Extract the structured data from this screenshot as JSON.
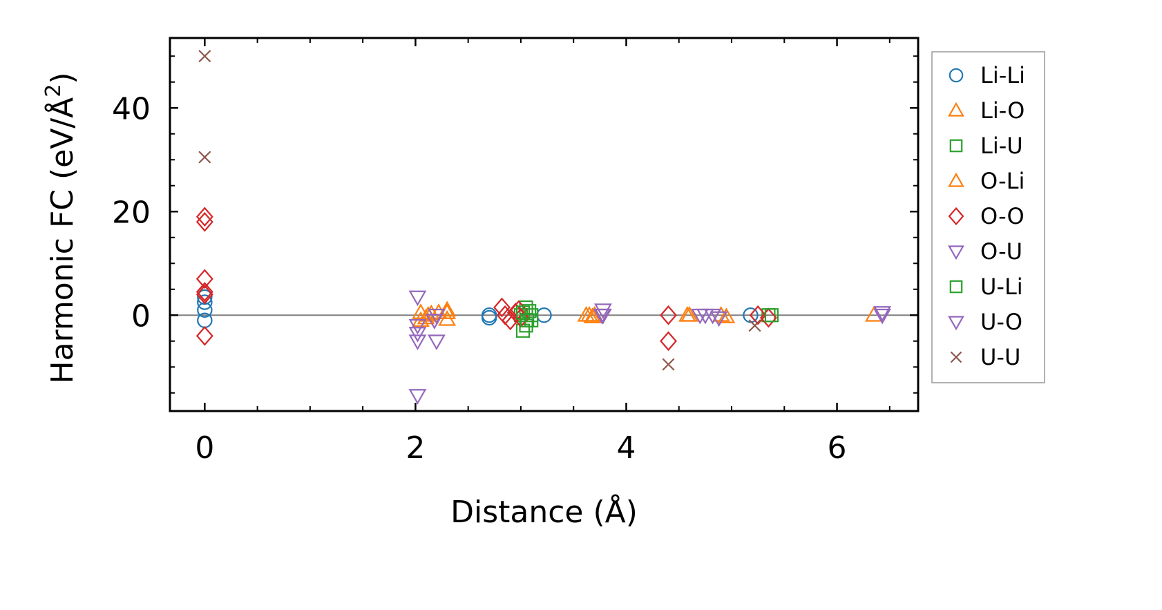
{
  "chart_data": {
    "type": "scatter",
    "xlabel": "Distance (Å)",
    "ylabel_main": "Harmonic FC (eV/Å",
    "ylabel_sup": "2",
    "ylabel_end": ")",
    "xlim": [
      -0.33,
      6.77
    ],
    "ylim": [
      -18.5,
      53.5
    ],
    "xticks": [
      0,
      2,
      4,
      6
    ],
    "xtick_labels": [
      "0",
      "2",
      "4",
      "6"
    ],
    "yticks": [
      0,
      20,
      40
    ],
    "ytick_labels": [
      "0",
      "20",
      "40"
    ],
    "zero_line": 0,
    "legend_position": "right",
    "series": [
      {
        "name": "Li-Li",
        "marker": "circle",
        "color": "#1f77b4",
        "points": [
          [
            0,
            3.5
          ],
          [
            0,
            2.5
          ],
          [
            0,
            1
          ],
          [
            0,
            -1
          ],
          [
            2.7,
            0
          ],
          [
            2.7,
            -0.5
          ],
          [
            3.22,
            0
          ],
          [
            5.18,
            0
          ]
        ]
      },
      {
        "name": "Li-O",
        "marker": "triangle-up",
        "color": "#ff7f0e",
        "points": [
          [
            2.05,
            0.5
          ],
          [
            2.1,
            -0.5
          ],
          [
            2.15,
            0.3
          ],
          [
            2.22,
            0.5
          ],
          [
            2.3,
            -0.8
          ],
          [
            2.3,
            1
          ],
          [
            3.62,
            0
          ],
          [
            3.68,
            -0.3
          ],
          [
            4.58,
            0
          ],
          [
            6.35,
            0
          ]
        ]
      },
      {
        "name": "Li-U",
        "marker": "square",
        "color": "#2ca02c",
        "points": [
          [
            3.0,
            0
          ],
          [
            3.05,
            1.5
          ],
          [
            3.05,
            -2
          ],
          [
            3.02,
            -3
          ],
          [
            3.08,
            0.8
          ],
          [
            3.1,
            -1
          ],
          [
            5.35,
            0
          ]
        ]
      },
      {
        "name": "O-Li",
        "marker": "triangle-up",
        "color": "#ff7f0e",
        "points": [
          [
            2.05,
            -1
          ],
          [
            2.12,
            0
          ],
          [
            2.3,
            0.5
          ],
          [
            3.65,
            0
          ],
          [
            3.7,
            0
          ],
          [
            4.6,
            0
          ],
          [
            4.9,
            0
          ],
          [
            4.95,
            -0.3
          ]
        ]
      },
      {
        "name": "O-O",
        "marker": "diamond",
        "color": "#d62728",
        "points": [
          [
            0,
            19
          ],
          [
            0,
            18
          ],
          [
            0,
            7
          ],
          [
            0,
            4.5
          ],
          [
            0,
            4
          ],
          [
            0,
            -4
          ],
          [
            2.82,
            1.5
          ],
          [
            2.85,
            0
          ],
          [
            2.9,
            -1
          ],
          [
            2.95,
            0.5
          ],
          [
            3.0,
            -0.5
          ],
          [
            2.98,
            1
          ],
          [
            4.4,
            0
          ],
          [
            4.4,
            -5
          ],
          [
            5.25,
            0
          ],
          [
            5.35,
            -0.5
          ]
        ]
      },
      {
        "name": "O-U",
        "marker": "triangle-down",
        "color": "#9467bd",
        "points": [
          [
            2.02,
            3.5
          ],
          [
            2.02,
            -2
          ],
          [
            2.02,
            -3.5
          ],
          [
            2.02,
            -5
          ],
          [
            2.2,
            0
          ],
          [
            2.2,
            -5
          ],
          [
            3.78,
            1
          ],
          [
            3.78,
            0
          ],
          [
            4.75,
            0
          ],
          [
            4.82,
            0
          ]
        ]
      },
      {
        "name": "U-Li",
        "marker": "square",
        "color": "#2ca02c",
        "points": [
          [
            3.02,
            0.5
          ],
          [
            3.06,
            -1
          ],
          [
            3.1,
            0
          ],
          [
            5.38,
            0
          ]
        ]
      },
      {
        "name": "U-O",
        "marker": "triangle-down",
        "color": "#9467bd",
        "points": [
          [
            2.02,
            -15.5
          ],
          [
            2.18,
            -1
          ],
          [
            3.77,
            0
          ],
          [
            4.7,
            0
          ],
          [
            4.88,
            -0.5
          ],
          [
            6.43,
            0.5
          ],
          [
            6.43,
            0
          ]
        ]
      },
      {
        "name": "U-U",
        "marker": "x",
        "color": "#8c564b",
        "points": [
          [
            0,
            50
          ],
          [
            0,
            30.5
          ],
          [
            4.4,
            -9.5
          ],
          [
            5.22,
            -2
          ]
        ]
      }
    ]
  }
}
